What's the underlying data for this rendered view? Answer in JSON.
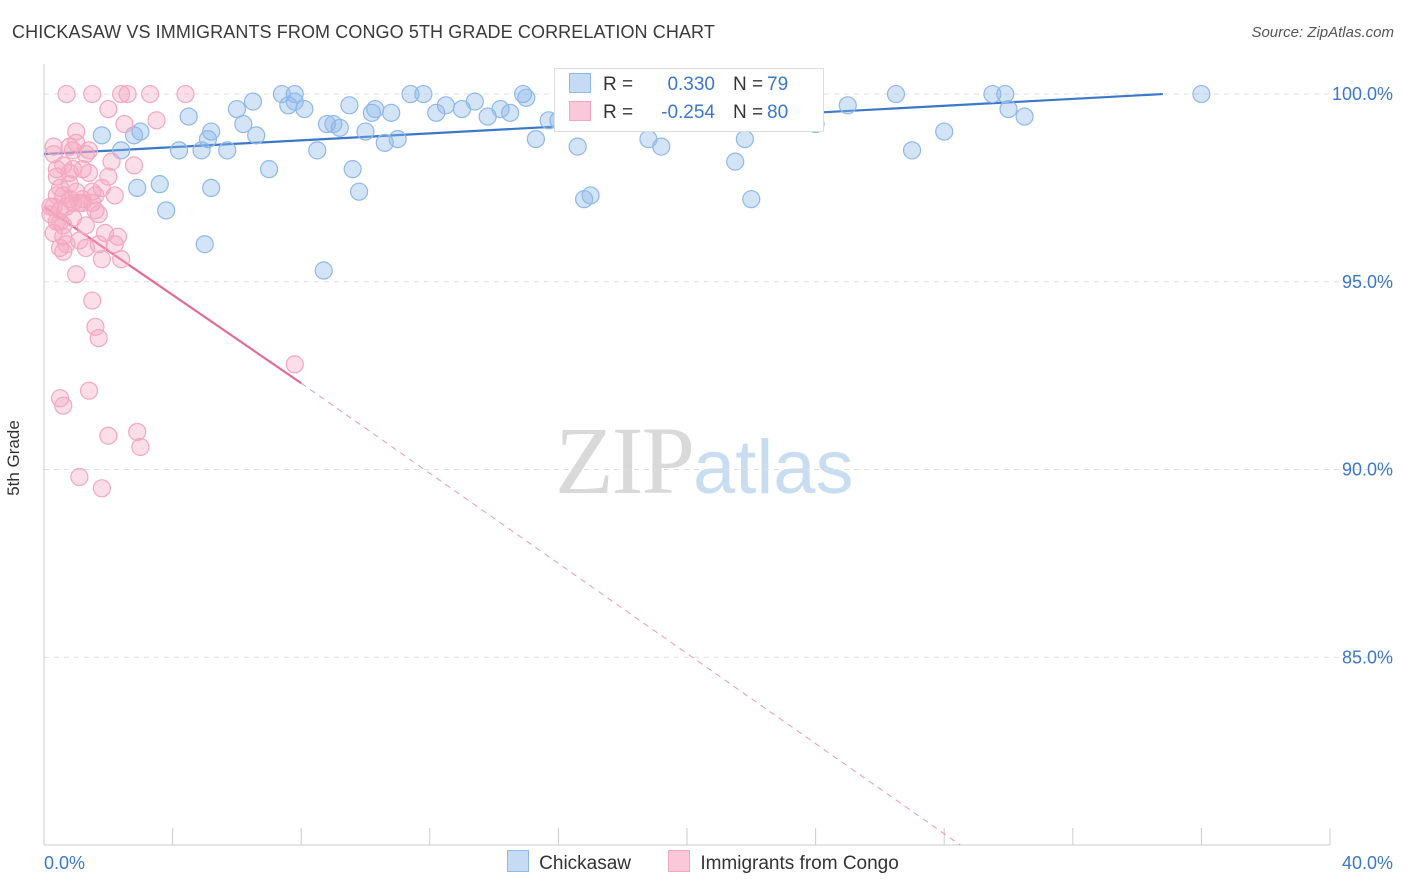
{
  "chart_data": {
    "type": "scatter",
    "title": "CHICKASAW VS IMMIGRANTS FROM CONGO 5TH GRADE CORRELATION CHART",
    "source": "Source: ZipAtlas.com",
    "ylabel": "5th Grade",
    "xlim": [
      0,
      40
    ],
    "ylim": [
      80,
      100.8
    ],
    "x_tick_labels": [
      "0.0%",
      "40.0%"
    ],
    "y_ticks": [
      {
        "value": 100,
        "label": "100.0%"
      },
      {
        "value": 95,
        "label": "95.0%"
      },
      {
        "value": 90,
        "label": "90.0%"
      },
      {
        "value": 85,
        "label": "85.0%"
      }
    ],
    "watermark": {
      "zip": "ZIP",
      "atlas": "atlas"
    },
    "legend": {
      "r_label": "R =",
      "n_label": "N =",
      "entries": [
        {
          "name": "Chickasaw",
          "r": "0.330",
          "n": "79"
        },
        {
          "name": "Immigrants from Congo",
          "r": "-0.254",
          "n": "80"
        }
      ]
    },
    "series": [
      {
        "name": "Chickasaw",
        "color": "#8fb8ea",
        "line_color": "#3b78c9",
        "trend": {
          "x0": 0,
          "y0": 98.4,
          "x1": 34.8,
          "y1": 100.0
        },
        "points": [
          [
            1.8,
            98.9
          ],
          [
            2.4,
            98.5
          ],
          [
            2.9,
            97.5
          ],
          [
            2.8,
            98.9
          ],
          [
            3.0,
            99.0
          ],
          [
            3.6,
            97.6
          ],
          [
            3.8,
            96.9
          ],
          [
            4.2,
            98.5
          ],
          [
            4.5,
            99.4
          ],
          [
            4.9,
            98.5
          ],
          [
            5.1,
            98.8
          ],
          [
            5.2,
            97.5
          ],
          [
            5.0,
            96.0
          ],
          [
            5.7,
            98.5
          ],
          [
            6.0,
            99.6
          ],
          [
            6.2,
            99.2
          ],
          [
            6.5,
            99.8
          ],
          [
            5.2,
            99.0
          ],
          [
            6.6,
            98.9
          ],
          [
            7.0,
            98.0
          ],
          [
            7.4,
            100.0
          ],
          [
            7.6,
            99.7
          ],
          [
            7.8,
            100.0
          ],
          [
            7.8,
            99.8
          ],
          [
            8.1,
            99.6
          ],
          [
            8.5,
            98.5
          ],
          [
            8.8,
            99.2
          ],
          [
            8.7,
            95.3
          ],
          [
            9.0,
            99.2
          ],
          [
            9.2,
            99.1
          ],
          [
            9.5,
            99.7
          ],
          [
            9.6,
            98.0
          ],
          [
            9.8,
            97.4
          ],
          [
            10.0,
            99.0
          ],
          [
            10.2,
            99.5
          ],
          [
            10.3,
            99.6
          ],
          [
            10.6,
            98.7
          ],
          [
            10.8,
            99.5
          ],
          [
            11.0,
            98.8
          ],
          [
            11.4,
            100.0
          ],
          [
            11.8,
            100.0
          ],
          [
            12.2,
            99.5
          ],
          [
            12.5,
            99.7
          ],
          [
            13.0,
            99.6
          ],
          [
            13.4,
            99.8
          ],
          [
            13.8,
            99.4
          ],
          [
            14.2,
            99.6
          ],
          [
            14.5,
            99.5
          ],
          [
            14.9,
            100.0
          ],
          [
            15.0,
            99.9
          ],
          [
            15.3,
            98.8
          ],
          [
            15.7,
            99.3
          ],
          [
            16.0,
            99.3
          ],
          [
            16.6,
            98.6
          ],
          [
            16.8,
            97.2
          ],
          [
            17.0,
            97.3
          ],
          [
            17.5,
            100.0
          ],
          [
            18.0,
            100.0
          ],
          [
            18.5,
            99.3
          ],
          [
            18.8,
            98.8
          ],
          [
            19.2,
            98.6
          ],
          [
            19.5,
            99.5
          ],
          [
            19.8,
            99.5
          ],
          [
            20.0,
            100.0
          ],
          [
            21.5,
            98.2
          ],
          [
            22.0,
            97.2
          ],
          [
            21.8,
            98.8
          ],
          [
            22.5,
            100.0
          ],
          [
            23.0,
            99.3
          ],
          [
            24.0,
            99.2
          ],
          [
            25.0,
            99.7
          ],
          [
            26.5,
            100.0
          ],
          [
            27.0,
            98.5
          ],
          [
            28.0,
            99.0
          ],
          [
            29.5,
            100.0
          ],
          [
            29.9,
            100.0
          ],
          [
            30.0,
            99.6
          ],
          [
            30.5,
            99.4
          ],
          [
            36.0,
            100.0
          ]
        ]
      },
      {
        "name": "Immigrants from Congo",
        "color": "#f4a7c0",
        "line_color": "#e36c97",
        "trend": {
          "x0": 0,
          "y0": 97.0,
          "x1": 8.0,
          "y1": 92.3
        },
        "trend_ext": {
          "x0": 8.0,
          "y0": 92.3,
          "x1": 28.5,
          "y1": 80.0
        },
        "points": [
          [
            0.3,
            98.4
          ],
          [
            0.4,
            98.0
          ],
          [
            0.4,
            97.3
          ],
          [
            0.5,
            96.9
          ],
          [
            0.5,
            96.6
          ],
          [
            0.6,
            96.2
          ],
          [
            0.6,
            95.8
          ],
          [
            0.7,
            97.0
          ],
          [
            0.8,
            97.2
          ],
          [
            0.8,
            97.6
          ],
          [
            0.9,
            98.0
          ],
          [
            0.9,
            98.5
          ],
          [
            1.0,
            99.0
          ],
          [
            1.0,
            98.7
          ],
          [
            1.1,
            97.1
          ],
          [
            1.2,
            97.1
          ],
          [
            1.3,
            96.5
          ],
          [
            1.3,
            98.4
          ],
          [
            1.4,
            97.9
          ],
          [
            1.5,
            97.4
          ],
          [
            1.5,
            97.1
          ],
          [
            1.6,
            96.9
          ],
          [
            1.7,
            96.0
          ],
          [
            1.8,
            95.6
          ],
          [
            2.0,
            97.8
          ],
          [
            2.1,
            98.2
          ],
          [
            2.2,
            97.3
          ],
          [
            2.3,
            96.2
          ],
          [
            2.4,
            95.6
          ],
          [
            2.5,
            99.2
          ],
          [
            0.3,
            97.0
          ],
          [
            0.5,
            97.5
          ],
          [
            0.6,
            96.5
          ],
          [
            0.7,
            96.0
          ],
          [
            0.3,
            96.3
          ],
          [
            0.4,
            97.8
          ],
          [
            0.2,
            97.0
          ],
          [
            0.2,
            96.8
          ],
          [
            0.3,
            98.6
          ],
          [
            0.6,
            98.1
          ],
          [
            0.8,
            98.6
          ],
          [
            1.0,
            97.4
          ],
          [
            1.2,
            98.0
          ],
          [
            1.4,
            98.5
          ],
          [
            1.6,
            97.3
          ],
          [
            1.8,
            97.5
          ],
          [
            0.9,
            96.7
          ],
          [
            1.1,
            96.1
          ],
          [
            1.3,
            95.9
          ],
          [
            1.5,
            94.5
          ],
          [
            1.6,
            93.8
          ],
          [
            1.7,
            93.5
          ],
          [
            0.5,
            91.9
          ],
          [
            0.6,
            91.7
          ],
          [
            1.4,
            92.1
          ],
          [
            2.0,
            90.9
          ],
          [
            2.9,
            91.0
          ],
          [
            3.0,
            90.6
          ],
          [
            1.1,
            89.8
          ],
          [
            1.8,
            89.5
          ],
          [
            7.8,
            92.8
          ],
          [
            0.7,
            100.0
          ],
          [
            1.5,
            100.0
          ],
          [
            2.4,
            100.0
          ],
          [
            2.6,
            100.0
          ],
          [
            3.3,
            100.0
          ],
          [
            4.4,
            100.0
          ],
          [
            2.0,
            99.6
          ],
          [
            3.5,
            99.3
          ],
          [
            2.8,
            98.1
          ],
          [
            1.0,
            95.2
          ],
          [
            0.4,
            96.6
          ],
          [
            0.6,
            97.3
          ],
          [
            0.9,
            97.1
          ],
          [
            1.2,
            97.2
          ],
          [
            1.7,
            96.8
          ],
          [
            0.5,
            95.9
          ],
          [
            1.9,
            96.3
          ],
          [
            2.2,
            96.0
          ],
          [
            0.8,
            97.9
          ]
        ]
      }
    ]
  }
}
